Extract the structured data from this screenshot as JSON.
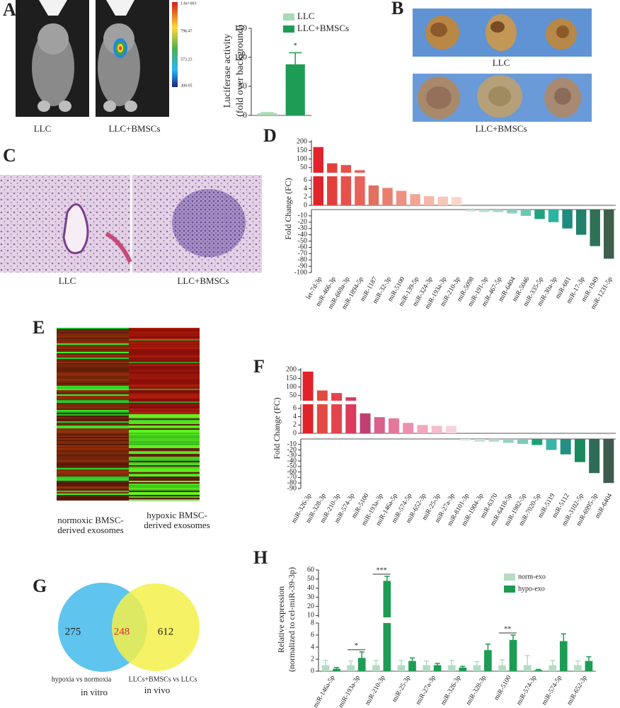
{
  "panel_labels": [
    "A",
    "B",
    "C",
    "D",
    "E",
    "F",
    "G",
    "H"
  ],
  "panel_a": {
    "image_labels": [
      "LLC",
      "LLC+BMSCs"
    ],
    "colorbar_labels": [
      "1.0e+003",
      "798.47",
      "573.23",
      "300.05"
    ]
  },
  "panel_b": {
    "labels": [
      "LLC",
      "LLC+BMSCs"
    ]
  },
  "panel_c": {
    "labels": [
      "LLC",
      "LLC+BMSCs"
    ]
  },
  "panel_e": {
    "columns": [
      [
        "normoxic BMSC-",
        "derived exosomes"
      ],
      [
        "hypoxic BMSC-",
        "derived exosomes"
      ]
    ]
  },
  "panel_g": {
    "counts": [
      275,
      248,
      612
    ],
    "sets": [
      [
        "hypoxia vs normoxia",
        "in vitro"
      ],
      [
        "LLCs+BMSCs vs LLCs",
        "in vivo"
      ]
    ]
  },
  "chart_data": [
    {
      "type": "grouped_bar",
      "ylabel": [
        "Luciferase activity",
        "(fold over background)"
      ],
      "series": [
        {
          "name": "LLC",
          "color": "#a9d9b6",
          "values": [
            4
          ],
          "errors": [
            1
          ]
        },
        {
          "name": "LLC+BMSCs",
          "color": "#1e9c55",
          "values": [
            88
          ],
          "errors": [
            20
          ]
        }
      ],
      "significance": [
        "*"
      ],
      "y_segments": [
        {
          "ylim": [
            0,
            150
          ],
          "yticks": [
            0,
            50,
            100,
            150
          ]
        }
      ]
    },
    {
      "type": "bar",
      "ylabel": "Fold Change (FC)",
      "categories": [
        "let-7d-3p",
        "miR-466-3p",
        "miR-669a-3p",
        "miR-1894-5p",
        "miR-1187",
        "miR-32-3p",
        "miR-5100",
        "miR-139-5p",
        "miR-324-3p",
        "miR-193a-3p",
        "miR-210-3p",
        "miR-5098",
        "miR-191-3p",
        "miR-467-5p",
        "miR-6404",
        "miR-5046",
        "miR-335-5p",
        "miR-30a-3p",
        "miR-681",
        "miR-17-3p",
        "miR-1949",
        "miR-1231-5p"
      ],
      "values": [
        170,
        75,
        65,
        35,
        4.8,
        4.2,
        3.5,
        2.7,
        2.2,
        2.1,
        2.0,
        -3,
        -4,
        -4,
        -6,
        -10,
        -15,
        -20,
        -30,
        -40,
        -58,
        -78
      ],
      "colors": [
        "#e0232b",
        "#e3403c",
        "#e5514b",
        "#e8625a",
        "#e07060",
        "#ea7f70",
        "#ef9080",
        "#f2a595",
        "#f5b6a8",
        "#f7c6ba",
        "#f9d6cc",
        "#c8e4dc",
        "#b8ddd3",
        "#a8d6ca",
        "#8ccfc0",
        "#6fc6b4",
        "#20a37a",
        "#2cb5a5",
        "#1f8a7e",
        "#23806a",
        "#2f7058",
        "#3d5f4c"
      ],
      "y_segments": [
        {
          "ylim": [
            20,
            210
          ],
          "yticks": [
            50,
            100,
            150,
            200
          ]
        },
        {
          "ylim": [
            0,
            7
          ],
          "yticks": [
            0,
            2,
            4,
            6
          ]
        },
        {
          "ylim": [
            -100,
            0
          ],
          "yticks": [
            -10,
            -20,
            -30,
            -40,
            -50,
            -60,
            -70,
            -80,
            -90,
            -100
          ]
        }
      ]
    },
    {
      "type": "bar",
      "ylabel": "Fold Change (FC)",
      "categories": [
        "miR-326-3p",
        "miR-328-3p",
        "miR-210-3p",
        "miR-574-3p",
        "miR-5100",
        "miR-193a-3p",
        "miR-146a-5p",
        "miR-574-5p",
        "miR-652-3p",
        "miR-25-3p",
        "miR-27a-3p",
        "miR-8101-3p",
        "miR-1904-3p",
        "miR-6370",
        "miR-6418-5p",
        "miR-1982-5p",
        "miR-7020-5p",
        "miR-5119",
        "miR-5112",
        "miR-3102-5p",
        "miR-6995-3p",
        "miR-6404"
      ],
      "values": [
        190,
        80,
        65,
        40,
        4.8,
        3.9,
        3.6,
        2.5,
        2.0,
        1.8,
        1.8,
        -3,
        -5,
        -5,
        -7,
        -9,
        -11,
        -20,
        -28,
        -42,
        -62,
        -80
      ],
      "colors": [
        "#e0232b",
        "#e34a42",
        "#e4444e",
        "#dc3a5e",
        "#c04070",
        "#d8608a",
        "#e5789a",
        "#ec90ad",
        "#f0a8bd",
        "#f4bccc",
        "#f8d2dc",
        "#d4ece6",
        "#c4e4dc",
        "#b4ddd3",
        "#98d2c4",
        "#7ccab8",
        "#1aa376",
        "#3bb4a8",
        "#239080",
        "#1a8a5e",
        "#2e6c58",
        "#3e5b4e"
      ],
      "y_segments": [
        {
          "ylim": [
            20,
            210
          ],
          "yticks": [
            50,
            100,
            150,
            200
          ]
        },
        {
          "ylim": [
            0,
            7
          ],
          "yticks": [
            0,
            2,
            4,
            6
          ]
        },
        {
          "ylim": [
            -90,
            0
          ],
          "yticks": [
            -10,
            -20,
            -30,
            -40,
            -50,
            -60,
            -70,
            -80,
            -90
          ]
        }
      ]
    },
    {
      "type": "grouped_bar",
      "ylabel": [
        "Relative expression",
        "(normalized to cel-miR-39-3p)"
      ],
      "categories": [
        "miR-146a-5p",
        "miR-193a-3p",
        "miR-210-3p",
        "miR-25-3p",
        "miR-27a-3p",
        "miR-326-3p",
        "miR-328-3p",
        "miR-5100",
        "miR-574-3p",
        "miR-574-5p",
        "miR-652-3p"
      ],
      "series": [
        {
          "name": "norm-exo",
          "color": "#b5dcc3",
          "values": [
            1,
            1,
            1,
            1,
            1,
            1,
            1,
            1,
            1,
            1,
            1
          ],
          "errors": [
            0.8,
            0.7,
            0.8,
            0.8,
            0.7,
            0.8,
            0.6,
            0.9,
            1.6,
            0.8,
            0.7
          ]
        },
        {
          "name": "hypo-exo",
          "color": "#1e9c55",
          "values": [
            0.4,
            2.2,
            48,
            1.7,
            1.0,
            0.6,
            3.5,
            5.2,
            0.2,
            5.0,
            1.7
          ],
          "errors": [
            0.2,
            1.0,
            5,
            0.5,
            0.3,
            0.2,
            1.0,
            0.8,
            0.1,
            1.2,
            0.7
          ]
        }
      ],
      "significance": [
        null,
        "*",
        "***",
        null,
        null,
        null,
        null,
        "**",
        null,
        null,
        null
      ],
      "y_segments": [
        {
          "ylim": [
            0,
            8
          ],
          "yticks": [
            0,
            2,
            4,
            6,
            8
          ]
        },
        {
          "ylim": [
            8,
            60
          ],
          "yticks": [
            10,
            20,
            30,
            40,
            50,
            60
          ]
        }
      ]
    }
  ]
}
